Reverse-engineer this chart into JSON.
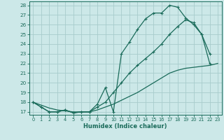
{
  "xlabel": "Humidex (Indice chaleur)",
  "bg_color": "#cce8e8",
  "grid_color": "#a8cccc",
  "line_color": "#1a6b5a",
  "xlim": [
    -0.5,
    23.5
  ],
  "ylim": [
    16.7,
    28.4
  ],
  "yticks": [
    17,
    18,
    19,
    20,
    21,
    22,
    23,
    24,
    25,
    26,
    27,
    28
  ],
  "xticks": [
    0,
    1,
    2,
    3,
    4,
    5,
    6,
    7,
    8,
    9,
    10,
    11,
    12,
    13,
    14,
    15,
    16,
    17,
    18,
    19,
    20,
    21,
    22,
    23
  ],
  "line1_x": [
    0,
    1,
    2,
    3,
    4,
    5,
    6,
    7,
    8,
    9,
    10,
    11,
    12,
    13,
    14,
    15,
    16,
    17,
    18,
    19,
    20,
    21,
    22
  ],
  "line1_y": [
    18.0,
    17.5,
    17.0,
    17.0,
    17.2,
    16.9,
    17.0,
    17.0,
    17.8,
    19.5,
    17.0,
    23.0,
    24.2,
    25.5,
    26.6,
    27.2,
    27.2,
    28.0,
    27.8,
    26.7,
    26.0,
    25.0,
    23.0
  ],
  "line2_x": [
    0,
    1,
    2,
    3,
    4,
    5,
    6,
    7,
    8,
    9,
    10,
    11,
    12,
    13,
    14,
    15,
    16,
    17,
    18,
    19,
    20,
    21,
    22,
    23
  ],
  "line2_y": [
    18.0,
    17.7,
    17.4,
    17.2,
    17.1,
    17.0,
    17.0,
    17.0,
    17.2,
    17.5,
    17.8,
    18.2,
    18.6,
    19.0,
    19.5,
    20.0,
    20.5,
    21.0,
    21.3,
    21.5,
    21.6,
    21.7,
    21.8,
    22.0
  ],
  "line3_x": [
    0,
    1,
    2,
    3,
    4,
    5,
    6,
    7,
    8,
    9,
    10,
    11,
    12,
    13,
    14,
    15,
    16,
    17,
    18,
    19,
    20,
    21,
    22
  ],
  "line3_y": [
    18.0,
    17.5,
    17.0,
    17.0,
    17.2,
    16.9,
    17.0,
    17.0,
    17.5,
    18.0,
    19.0,
    20.0,
    21.0,
    21.8,
    22.5,
    23.2,
    24.0,
    25.0,
    25.8,
    26.5,
    26.2,
    25.0,
    22.0
  ]
}
